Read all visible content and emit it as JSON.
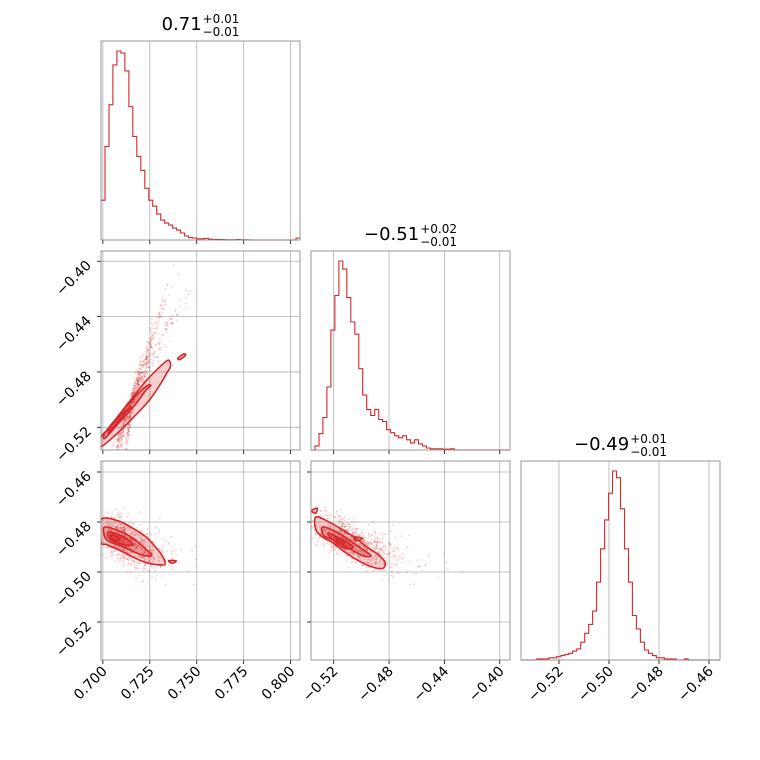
{
  "chart_data": {
    "type": "corner",
    "style": {
      "color": "#d62728",
      "grid": true
    },
    "parameters": [
      {
        "title_main": "0.71",
        "title_upper": "+0.01",
        "title_lower": "−0.01",
        "range": [
          0.699,
          0.805
        ],
        "ticks": [
          0.7,
          0.725,
          0.75,
          0.775,
          0.8
        ],
        "tick_labels": [
          "0.700",
          "0.725",
          "0.750",
          "0.775",
          "0.800"
        ]
      },
      {
        "title_main": "−0.51",
        "title_upper": "+0.02",
        "title_lower": "−0.01",
        "range": [
          -0.5364,
          -0.3926
        ],
        "ticks": [
          -0.52,
          -0.48,
          -0.44,
          -0.4
        ],
        "tick_labels": [
          "−0.52",
          "−0.48",
          "−0.44",
          "−0.40"
        ]
      },
      {
        "title_main": "−0.49",
        "title_upper": "+0.01",
        "title_lower": "−0.01",
        "range": [
          -0.5352,
          -0.4556
        ],
        "ticks": [
          -0.52,
          -0.5,
          -0.48,
          -0.46
        ],
        "tick_labels": [
          "−0.52",
          "−0.50",
          "−0.48",
          "−0.46"
        ]
      }
    ],
    "histograms": [
      {
        "param": 0,
        "bin_start": 0.699,
        "bin_width": 0.00212,
        "values": [
          0.2,
          0.47,
          0.68,
          0.88,
          0.95,
          0.94,
          0.85,
          0.67,
          0.52,
          0.42,
          0.35,
          0.26,
          0.2,
          0.17,
          0.13,
          0.1,
          0.085,
          0.075,
          0.06,
          0.05,
          0.035,
          0.02,
          0.012,
          0.01,
          0.006,
          0.006,
          0.008,
          0.004,
          0.003,
          0.002,
          0.002,
          0.001,
          0.001,
          0.001,
          0.002,
          0.001,
          0.001,
          0.0,
          0.0,
          0.0,
          0.0,
          0.0,
          0.0,
          0.0,
          0.0,
          0.0,
          0.0,
          0.0,
          0.0,
          0.01
        ]
      },
      {
        "param": 1,
        "bin_start": -0.5364,
        "bin_width": 0.002876,
        "values": [
          0.0,
          0.02,
          0.08,
          0.16,
          0.31,
          0.59,
          0.76,
          0.93,
          0.89,
          0.75,
          0.63,
          0.57,
          0.4,
          0.27,
          0.2,
          0.17,
          0.2,
          0.15,
          0.14,
          0.1,
          0.085,
          0.07,
          0.06,
          0.07,
          0.05,
          0.035,
          0.05,
          0.03,
          0.02,
          0.01,
          0.006,
          0.006,
          0.006,
          0.004,
          0.004,
          0.006,
          0.0,
          0.0,
          0.0,
          0.0,
          0.0,
          0.0,
          0.0,
          0.0,
          0.0,
          0.0,
          0.0,
          0.0,
          0.0,
          0.0
        ]
      },
      {
        "param": 2,
        "bin_start": -0.5352,
        "bin_width": 0.001592,
        "values": [
          0.0,
          0.0,
          0.0,
          0.0,
          0.005,
          0.005,
          0.005,
          0.01,
          0.01,
          0.015,
          0.02,
          0.025,
          0.03,
          0.04,
          0.05,
          0.08,
          0.12,
          0.16,
          0.22,
          0.35,
          0.5,
          0.63,
          0.75,
          0.85,
          0.82,
          0.68,
          0.5,
          0.35,
          0.2,
          0.14,
          0.08,
          0.045,
          0.03,
          0.02,
          0.01,
          0.01,
          0.005,
          0.005,
          0.005,
          0.0,
          0.0,
          0.005,
          0.0,
          0.0,
          0.0,
          0.0,
          0.0,
          0.0,
          0.0,
          0.0
        ]
      }
    ],
    "panels_2d": [
      {
        "x_param": 0,
        "y_param": 1,
        "density": {
          "mean": [
            0.716,
            -0.498
          ],
          "cov": [
            [
              7.2e-05,
              0.000297
            ],
            [
              0.000297,
              0.00125
            ]
          ]
        },
        "contours": [
          {
            "level": 0.95,
            "points": [
              [
                0.699,
                -0.534
              ],
              [
                0.708,
                -0.524
              ],
              [
                0.7165,
                -0.5125
              ],
              [
                0.725,
                -0.5
              ],
              [
                0.731,
                -0.488
              ],
              [
                0.734,
                -0.481
              ],
              [
                0.736,
                -0.476
              ],
              [
                0.7355,
                -0.472
              ],
              [
                0.734,
                -0.472
              ],
              [
                0.729,
                -0.478
              ],
              [
                0.722,
                -0.488
              ],
              [
                0.715,
                -0.5
              ],
              [
                0.708,
                -0.512
              ],
              [
                0.703,
                -0.521
              ],
              [
                0.699,
                -0.527
              ]
            ]
          },
          {
            "level": 0.68,
            "points": [
              [
                0.701,
                -0.528
              ],
              [
                0.709,
                -0.516
              ],
              [
                0.717,
                -0.504
              ],
              [
                0.723,
                -0.493
              ],
              [
                0.7255,
                -0.49
              ],
              [
                0.7235,
                -0.49
              ],
              [
                0.717,
                -0.498
              ],
              [
                0.71,
                -0.509
              ],
              [
                0.704,
                -0.519
              ],
              [
                0.701,
                -0.524
              ]
            ]
          },
          {
            "level": 0.39,
            "points": [
              [
                0.703,
                -0.524
              ],
              [
                0.708,
                -0.516
              ],
              [
                0.713,
                -0.508
              ],
              [
                0.715,
                -0.505
              ],
              [
                0.713,
                -0.507
              ],
              [
                0.708,
                -0.513
              ],
              [
                0.704,
                -0.52
              ]
            ]
          },
          {
            "level": 0.12,
            "points": [
              [
                0.704,
                -0.519
              ],
              [
                0.707,
                -0.515
              ],
              [
                0.709,
                -0.512
              ],
              [
                0.708,
                -0.513
              ],
              [
                0.705,
                -0.517
              ]
            ]
          },
          {
            "level": 0.95,
            "points": [
              [
                0.74,
                -0.47
              ],
              [
                0.743,
                -0.467
              ],
              [
                0.744,
                -0.468
              ],
              [
                0.741,
                -0.471
              ]
            ]
          }
        ]
      },
      {
        "x_param": 0,
        "y_param": 2,
        "density": {
          "mean": [
            0.712,
            -0.488
          ],
          "cov": [
            [
              8.8e-05,
              -3.17e-05
            ],
            [
              -3.17e-05,
              2.96e-05
            ]
          ]
        },
        "contours": [
          {
            "level": 0.95,
            "points": [
              [
                0.699,
                -0.479
              ],
              [
                0.708,
                -0.4795
              ],
              [
                0.716,
                -0.4825
              ],
              [
                0.723,
                -0.486
              ],
              [
                0.728,
                -0.49
              ],
              [
                0.732,
                -0.494
              ],
              [
                0.733,
                -0.497
              ],
              [
                0.728,
                -0.497
              ],
              [
                0.722,
                -0.496
              ],
              [
                0.716,
                -0.494
              ],
              [
                0.708,
                -0.491
              ],
              [
                0.702,
                -0.489
              ],
              [
                0.699,
                -0.488
              ]
            ]
          },
          {
            "level": 0.68,
            "points": [
              [
                0.701,
                -0.482
              ],
              [
                0.71,
                -0.484
              ],
              [
                0.717,
                -0.487
              ],
              [
                0.723,
                -0.491
              ],
              [
                0.726,
                -0.4935
              ],
              [
                0.72,
                -0.493
              ],
              [
                0.711,
                -0.49
              ],
              [
                0.704,
                -0.488
              ],
              [
                0.701,
                -0.486
              ]
            ]
          },
          {
            "level": 0.39,
            "points": [
              [
                0.703,
                -0.484
              ],
              [
                0.711,
                -0.486
              ],
              [
                0.716,
                -0.489
              ],
              [
                0.711,
                -0.489
              ],
              [
                0.704,
                -0.487
              ]
            ]
          },
          {
            "level": 0.12,
            "points": [
              [
                0.704,
                -0.485
              ],
              [
                0.709,
                -0.4865
              ],
              [
                0.706,
                -0.4875
              ]
            ]
          },
          {
            "level": 0.95,
            "points": [
              [
                0.735,
                -0.4955
              ],
              [
                0.739,
                -0.4955
              ],
              [
                0.737,
                -0.4965
              ]
            ]
          }
        ]
      },
      {
        "x_param": 1,
        "y_param": 2,
        "density": {
          "mean": [
            -0.508,
            -0.488
          ],
          "cov": [
            [
              0.000282,
              -6.65e-05
            ],
            [
              -6.65e-05,
              2.96e-05
            ]
          ]
        },
        "contours": [
          {
            "level": 0.95,
            "points": [
              [
                -0.533,
                -0.478
              ],
              [
                -0.525,
                -0.4795
              ],
              [
                -0.514,
                -0.483
              ],
              [
                -0.504,
                -0.4865
              ],
              [
                -0.496,
                -0.49
              ],
              [
                -0.488,
                -0.493
              ],
              [
                -0.483,
                -0.496
              ],
              [
                -0.4845,
                -0.4985
              ],
              [
                -0.492,
                -0.498
              ],
              [
                -0.502,
                -0.4955
              ],
              [
                -0.512,
                -0.492
              ],
              [
                -0.52,
                -0.4885
              ],
              [
                -0.528,
                -0.486
              ],
              [
                -0.533,
                -0.483
              ]
            ]
          },
          {
            "level": 0.68,
            "points": [
              [
                -0.528,
                -0.482
              ],
              [
                -0.518,
                -0.484
              ],
              [
                -0.508,
                -0.4875
              ],
              [
                -0.499,
                -0.491
              ],
              [
                -0.493,
                -0.4935
              ],
              [
                -0.499,
                -0.4935
              ],
              [
                -0.509,
                -0.4905
              ],
              [
                -0.519,
                -0.4875
              ],
              [
                -0.527,
                -0.4855
              ]
            ]
          },
          {
            "level": 0.39,
            "points": [
              [
                -0.524,
                -0.4845
              ],
              [
                -0.514,
                -0.487
              ],
              [
                -0.506,
                -0.49
              ],
              [
                -0.512,
                -0.4905
              ],
              [
                -0.521,
                -0.487
              ]
            ]
          },
          {
            "level": 0.12,
            "points": [
              [
                -0.519,
                -0.486
              ],
              [
                -0.512,
                -0.488
              ],
              [
                -0.515,
                -0.4885
              ]
            ]
          },
          {
            "level": 0.95,
            "points": [
              [
                -0.505,
                -0.486
              ],
              [
                -0.499,
                -0.4865
              ],
              [
                -0.504,
                -0.4875
              ]
            ]
          },
          {
            "level": 0.95,
            "points": [
              [
                -0.536,
                -0.4755
              ],
              [
                -0.532,
                -0.4745
              ],
              [
                -0.533,
                -0.4765
              ]
            ]
          }
        ]
      }
    ]
  }
}
